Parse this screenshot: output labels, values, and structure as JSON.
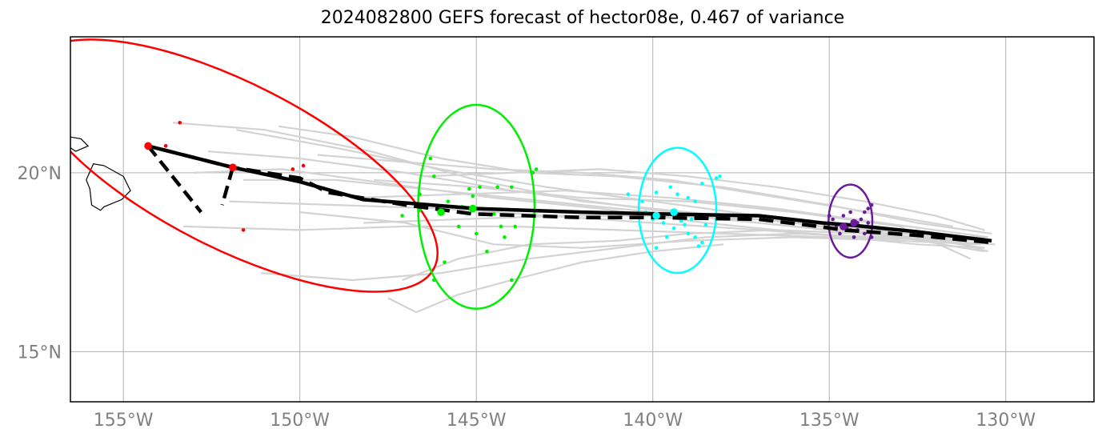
{
  "title": "2024082800 GEFS forecast of hector08e, 0.467 of variance",
  "map": {
    "lon_range": [
      -156.5,
      -127.5
    ],
    "lat_range": [
      13.6,
      23.8
    ],
    "lon_ticks": [
      {
        "value": -155,
        "label": "155°W"
      },
      {
        "value": -150,
        "label": "150°W"
      },
      {
        "value": -145,
        "label": "145°W"
      },
      {
        "value": -140,
        "label": "140°W"
      },
      {
        "value": -135,
        "label": "135°W"
      },
      {
        "value": -130,
        "label": "130°W"
      }
    ],
    "lat_ticks": [
      {
        "value": 20,
        "label": "20°N"
      },
      {
        "value": 15,
        "label": "15°N"
      }
    ],
    "gridlines": true
  },
  "colors": {
    "ensemble": "#d3d3d3",
    "mean_track": "#000000",
    "t1": "#6a1b9a",
    "t2": "#00ffff",
    "t3": "#00ee00",
    "t4": "#ff0000",
    "land": "#000000"
  },
  "islands": [
    [
      [
        -155.85,
        20.25
      ],
      [
        -155.55,
        20.2
      ],
      [
        -155.0,
        19.9
      ],
      [
        -154.8,
        19.5
      ],
      [
        -155.05,
        19.25
      ],
      [
        -155.55,
        19.05
      ],
      [
        -155.65,
        18.95
      ],
      [
        -155.9,
        19.1
      ],
      [
        -155.95,
        19.55
      ],
      [
        -156.05,
        19.8
      ],
      [
        -155.85,
        20.25
      ]
    ],
    [
      [
        -156.5,
        21.0
      ],
      [
        -156.2,
        20.95
      ],
      [
        -156.0,
        20.75
      ],
      [
        -156.35,
        20.6
      ],
      [
        -156.5,
        20.7
      ]
    ]
  ],
  "ensemble_tracks": [
    [
      [
        -153.6,
        21.4
      ],
      [
        -151.0,
        21.2
      ],
      [
        -148.0,
        20.6
      ],
      [
        -145.0,
        19.8
      ],
      [
        -142.0,
        19.2
      ],
      [
        -139.0,
        18.9
      ],
      [
        -136.0,
        18.6
      ],
      [
        -133.0,
        18.2
      ],
      [
        -130.6,
        17.8
      ]
    ],
    [
      [
        -151.8,
        21.2
      ],
      [
        -149.0,
        20.7
      ],
      [
        -146.0,
        20.1
      ],
      [
        -143.0,
        19.6
      ],
      [
        -140.0,
        19.2
      ],
      [
        -137.0,
        18.8
      ],
      [
        -134.0,
        18.4
      ],
      [
        -130.6,
        17.9
      ]
    ],
    [
      [
        -152.6,
        20.6
      ],
      [
        -150.0,
        20.4
      ],
      [
        -147.0,
        20.0
      ],
      [
        -144.0,
        19.5
      ],
      [
        -141.0,
        19.1
      ],
      [
        -138.0,
        18.7
      ],
      [
        -135.0,
        18.4
      ],
      [
        -132.0,
        18.1
      ],
      [
        -130.3,
        18.0
      ]
    ],
    [
      [
        -153.0,
        20.0
      ],
      [
        -150.5,
        20.1
      ],
      [
        -147.5,
        19.7
      ],
      [
        -144.5,
        19.3
      ],
      [
        -141.5,
        19.0
      ],
      [
        -138.5,
        18.6
      ],
      [
        -135.5,
        18.3
      ],
      [
        -132.5,
        18.0
      ],
      [
        -130.6,
        17.9
      ]
    ],
    [
      [
        -151.6,
        19.8
      ],
      [
        -149.0,
        19.8
      ],
      [
        -146.0,
        19.5
      ],
      [
        -143.0,
        19.2
      ],
      [
        -140.0,
        18.9
      ],
      [
        -137.0,
        18.6
      ],
      [
        -134.0,
        18.3
      ],
      [
        -131.0,
        18.0
      ]
    ],
    [
      [
        -152.0,
        19.2
      ],
      [
        -149.0,
        19.1
      ],
      [
        -146.0,
        19.0
      ],
      [
        -143.0,
        18.8
      ],
      [
        -140.0,
        18.6
      ],
      [
        -137.0,
        18.4
      ],
      [
        -134.0,
        18.2
      ],
      [
        -130.6,
        18.2
      ]
    ],
    [
      [
        -153.3,
        18.5
      ],
      [
        -150.0,
        18.4
      ],
      [
        -147.0,
        18.5
      ],
      [
        -144.0,
        18.5
      ],
      [
        -141.0,
        18.4
      ],
      [
        -138.0,
        18.3
      ],
      [
        -135.0,
        18.2
      ],
      [
        -130.6,
        18.1
      ]
    ],
    [
      [
        -150.0,
        18.9
      ],
      [
        -147.0,
        18.6
      ],
      [
        -144.5,
        18.0
      ],
      [
        -142.0,
        17.9
      ],
      [
        -139.0,
        18.1
      ],
      [
        -136.0,
        18.2
      ],
      [
        -133.0,
        18.1
      ],
      [
        -130.7,
        18.0
      ]
    ],
    [
      [
        -151.1,
        17.2
      ],
      [
        -148.5,
        17.0
      ],
      [
        -146.0,
        17.2
      ],
      [
        -143.5,
        17.6
      ],
      [
        -141.0,
        17.9
      ],
      [
        -138.5,
        18.2
      ],
      [
        -136.0,
        18.3
      ],
      [
        -133.5,
        18.2
      ]
    ],
    [
      [
        -147.5,
        16.5
      ],
      [
        -146.7,
        16.1
      ],
      [
        -145.5,
        16.6
      ],
      [
        -144.0,
        17.0
      ],
      [
        -142.0,
        17.5
      ],
      [
        -140.0,
        17.8
      ],
      [
        -138.0,
        18.0
      ]
    ],
    [
      [
        -147.1,
        17.0
      ],
      [
        -145.5,
        17.6
      ],
      [
        -143.5,
        18.0
      ],
      [
        -141.0,
        18.1
      ],
      [
        -139.0,
        18.3
      ],
      [
        -136.5,
        18.4
      ],
      [
        -134.0,
        18.3
      ],
      [
        -130.7,
        18.1
      ]
    ],
    [
      [
        -150.6,
        21.3
      ],
      [
        -148.5,
        21.0
      ],
      [
        -146.0,
        20.4
      ],
      [
        -143.5,
        20.0
      ],
      [
        -141.0,
        19.9
      ],
      [
        -138.0,
        19.6
      ],
      [
        -135.0,
        19.1
      ],
      [
        -132.5,
        18.6
      ],
      [
        -130.4,
        18.3
      ]
    ],
    [
      [
        -146.5,
        19.9
      ],
      [
        -144.0,
        20.0
      ],
      [
        -141.5,
        20.1
      ],
      [
        -139.0,
        19.9
      ],
      [
        -136.5,
        19.6
      ],
      [
        -134.0,
        19.2
      ],
      [
        -132.0,
        18.8
      ],
      [
        -130.6,
        18.4
      ]
    ],
    [
      [
        -149.5,
        20.5
      ],
      [
        -147.0,
        20.3
      ],
      [
        -144.5,
        20.1
      ],
      [
        -142.0,
        20.0
      ],
      [
        -139.5,
        19.8
      ],
      [
        -137.0,
        19.4
      ],
      [
        -134.5,
        19.0
      ],
      [
        -131.5,
        18.5
      ]
    ],
    [
      [
        -148.5,
        19.3
      ],
      [
        -145.5,
        19.4
      ],
      [
        -142.5,
        19.5
      ],
      [
        -139.5,
        19.3
      ],
      [
        -136.5,
        19.0
      ],
      [
        -133.5,
        18.6
      ],
      [
        -130.5,
        18.2
      ]
    ],
    [
      [
        -147.9,
        19.8
      ],
      [
        -145.0,
        19.6
      ],
      [
        -142.0,
        19.3
      ],
      [
        -139.0,
        19.2
      ],
      [
        -136.0,
        18.9
      ],
      [
        -133.0,
        18.5
      ],
      [
        -131.0,
        17.6
      ]
    ],
    [
      [
        -148.2,
        18.6
      ],
      [
        -145.5,
        18.7
      ],
      [
        -142.5,
        18.8
      ],
      [
        -140.0,
        18.8
      ],
      [
        -137.0,
        18.7
      ],
      [
        -134.5,
        18.5
      ],
      [
        -132.0,
        18.2
      ],
      [
        -130.5,
        17.8
      ]
    ]
  ],
  "mean_track_solid": [
    [
      -154.3,
      20.75
    ],
    [
      -151.9,
      20.15
    ],
    [
      -150.0,
      19.75
    ],
    [
      -148.2,
      19.25
    ],
    [
      -145.0,
      19.0
    ],
    [
      -142.0,
      18.9
    ],
    [
      -139.9,
      18.85
    ],
    [
      -137.0,
      18.8
    ],
    [
      -135.2,
      18.6
    ],
    [
      -134.5,
      18.55
    ],
    [
      -132.5,
      18.35
    ],
    [
      -130.4,
      18.1
    ]
  ],
  "mean_track_dashed": [
    [
      -153.9,
      20.65
    ],
    [
      -151.9,
      20.15
    ],
    [
      -150.0,
      19.85
    ],
    [
      -149.2,
      19.45
    ],
    [
      -147.0,
      19.1
    ],
    [
      -145.1,
      18.85
    ],
    [
      -142.0,
      18.75
    ],
    [
      -139.9,
      18.75
    ],
    [
      -137.0,
      18.7
    ],
    [
      -135.3,
      18.5
    ],
    [
      -134.6,
      18.4
    ],
    [
      -132.5,
      18.25
    ],
    [
      -130.4,
      18.05
    ]
  ],
  "spokes": [
    {
      "from": [
        -154.3,
        20.75
      ],
      "to": [
        -152.8,
        18.9
      ]
    },
    {
      "from": [
        -151.9,
        20.15
      ],
      "to": [
        -152.2,
        19.1
      ]
    }
  ],
  "forecast_groups": [
    {
      "color": "#ff0000",
      "centers": [
        [
          -154.3,
          20.75
        ],
        [
          -151.9,
          20.15
        ]
      ],
      "ellipse": {
        "lon": -151.9,
        "lat": 20.2,
        "rx_deg": 6.4,
        "ry_deg": 2.3,
        "rotate_deg": 27
      },
      "members": [
        [
          -153.4,
          21.4
        ],
        [
          -153.8,
          20.75
        ],
        [
          -150.2,
          20.1
        ],
        [
          -149.9,
          20.2
        ],
        [
          -151.6,
          18.4
        ]
      ]
    },
    {
      "color": "#00ee00",
      "centers": [
        [
          -146.0,
          18.9
        ],
        [
          -145.1,
          19.0
        ]
      ],
      "ellipse": {
        "lon": -145.0,
        "lat": 19.05,
        "rx_deg": 1.65,
        "ry_deg": 2.85,
        "rotate_deg": 0
      },
      "members": [
        [
          -146.3,
          20.4
        ],
        [
          -146.2,
          19.9
        ],
        [
          -146.6,
          19.4
        ],
        [
          -145.8,
          19.2
        ],
        [
          -145.4,
          19.05
        ],
        [
          -145.1,
          19.35
        ],
        [
          -144.9,
          19.6
        ],
        [
          -145.2,
          19.55
        ],
        [
          -144.8,
          18.85
        ],
        [
          -144.5,
          18.85
        ],
        [
          -144.3,
          18.5
        ],
        [
          -143.9,
          18.5
        ],
        [
          -144.2,
          18.2
        ],
        [
          -145.0,
          18.3
        ],
        [
          -145.5,
          18.5
        ],
        [
          -144.4,
          19.6
        ],
        [
          -144.0,
          19.6
        ],
        [
          -143.4,
          20.0
        ],
        [
          -143.3,
          20.1
        ],
        [
          -144.7,
          17.8
        ],
        [
          -145.9,
          17.5
        ],
        [
          -146.2,
          17.0
        ],
        [
          -144.0,
          17.0
        ],
        [
          -147.1,
          18.8
        ],
        [
          -146.6,
          18.95
        ]
      ]
    },
    {
      "color": "#00ffff",
      "centers": [
        [
          -139.9,
          18.8
        ],
        [
          -139.4,
          18.9
        ]
      ],
      "ellipse": {
        "lon": -139.3,
        "lat": 18.95,
        "rx_deg": 1.1,
        "ry_deg": 1.75,
        "rotate_deg": 0
      },
      "members": [
        [
          -140.7,
          19.4
        ],
        [
          -139.9,
          19.45
        ],
        [
          -139.5,
          19.6
        ],
        [
          -139.3,
          19.4
        ],
        [
          -139.0,
          19.3
        ],
        [
          -138.8,
          19.2
        ],
        [
          -138.6,
          19.7
        ],
        [
          -138.2,
          19.85
        ],
        [
          -138.1,
          19.9
        ],
        [
          -140.3,
          19.2
        ],
        [
          -140.2,
          18.9
        ],
        [
          -140.0,
          18.7
        ],
        [
          -139.7,
          18.6
        ],
        [
          -139.4,
          18.45
        ],
        [
          -139.1,
          18.55
        ],
        [
          -139.0,
          18.3
        ],
        [
          -138.8,
          18.2
        ],
        [
          -138.6,
          18.05
        ],
        [
          -138.7,
          17.95
        ],
        [
          -139.6,
          18.2
        ],
        [
          -139.9,
          17.9
        ],
        [
          -138.9,
          18.7
        ],
        [
          -138.5,
          18.55
        ],
        [
          -139.2,
          18.65
        ]
      ]
    },
    {
      "color": "#6a1b9a",
      "centers": [
        [
          -134.6,
          18.5
        ],
        [
          -134.3,
          18.6
        ]
      ],
      "ellipse": {
        "lon": -134.4,
        "lat": 18.65,
        "rx_deg": 0.62,
        "ry_deg": 1.02,
        "rotate_deg": 0
      },
      "members": [
        [
          -134.9,
          18.7
        ],
        [
          -134.8,
          18.5
        ],
        [
          -134.5,
          18.45
        ],
        [
          -134.2,
          18.4
        ],
        [
          -134.1,
          18.7
        ],
        [
          -134.0,
          18.9
        ],
        [
          -133.9,
          19.0
        ],
        [
          -133.8,
          19.1
        ],
        [
          -133.9,
          18.6
        ],
        [
          -133.8,
          18.2
        ],
        [
          -134.4,
          18.9
        ],
        [
          -134.6,
          18.8
        ],
        [
          -135.0,
          18.8
        ],
        [
          -134.3,
          18.2
        ],
        [
          -134.7,
          18.3
        ],
        [
          -134.2,
          18.6
        ],
        [
          -134.0,
          18.3
        ],
        [
          -134.4,
          18.4
        ]
      ]
    }
  ]
}
